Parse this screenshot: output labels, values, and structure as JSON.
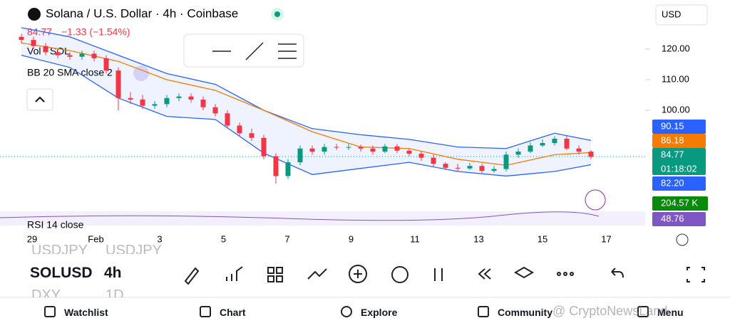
{
  "header": {
    "title": "Solana / U.S. Dollar · 4h · Coinbase",
    "price": "84.77",
    "change": "−1.33 (−1.54%)",
    "volume_label": "Vol · SOL",
    "indicator": "BB 20 SMA close 2",
    "currency": "USD",
    "rsi_label": "RSI 14 close"
  },
  "chart_data": {
    "type": "candlestick",
    "candles": {
      "open": [
        124,
        123,
        121,
        119,
        118,
        117.5,
        118.5,
        117,
        113,
        104,
        103.5,
        101.5,
        102,
        104,
        104.5,
        103.5,
        101,
        99,
        95,
        92.5,
        91,
        85,
        78.5,
        83,
        87.5,
        86.5,
        88,
        87.8,
        88,
        87.5,
        86.5,
        88.2,
        86.8,
        85.8,
        84.5,
        82.5,
        81.2,
        81,
        81.8,
        80.2,
        80.8,
        85.5,
        86.5,
        88.5,
        89.3,
        90.7,
        87.5,
        86.5
      ],
      "high": [
        125,
        124,
        122,
        120,
        119,
        119.5,
        119.5,
        118,
        114,
        106,
        105,
        103,
        105,
        105.5,
        105.5,
        104.5,
        102,
        100,
        96,
        94,
        92,
        86,
        84,
        88.5,
        88.5,
        89,
        89,
        89,
        88.8,
        88.5,
        89,
        89,
        87.5,
        86.5,
        85.5,
        83,
        82.5,
        82.8,
        82.5,
        81.8,
        86.5,
        87.5,
        89.5,
        90.5,
        91.5,
        91.5,
        88.5,
        87
      ],
      "low": [
        122,
        120,
        118,
        117,
        116.5,
        116.5,
        116,
        112,
        100,
        102,
        100.5,
        100.5,
        101,
        103,
        102.5,
        100,
        98,
        94,
        91.5,
        90,
        84,
        76,
        77.5,
        82,
        85.5,
        85.5,
        87,
        87,
        86.5,
        85.5,
        86,
        86,
        85,
        83.5,
        81.5,
        80.5,
        80,
        80.5,
        79.5,
        79.5,
        80,
        84.5,
        86,
        88,
        88.5,
        87,
        85.5,
        84
      ],
      "close": [
        123,
        121,
        119,
        118,
        117.5,
        118.5,
        117,
        113,
        104,
        103.5,
        101.5,
        102,
        104,
        104.5,
        103.5,
        101,
        99,
        95,
        92.5,
        91,
        85,
        78.5,
        83,
        87.5,
        86.5,
        88,
        87.8,
        88,
        87.5,
        86.5,
        88.2,
        86.8,
        85.8,
        84.5,
        82.5,
        81.2,
        81,
        81.8,
        80.2,
        80.8,
        85.5,
        86.5,
        88.5,
        89.3,
        90.7,
        87.5,
        86.5,
        84.77
      ]
    },
    "up_color": "#089981",
    "down_color": "#f23645",
    "bands": {
      "x": [
        0,
        4,
        8,
        12,
        16,
        20,
        24,
        28,
        32,
        36,
        40,
        44,
        47
      ],
      "upper": [
        127,
        124,
        118,
        112,
        108.5,
        100,
        94,
        92,
        90.5,
        88,
        87.5,
        92.5,
        90.15
      ],
      "middle": [
        122,
        119.5,
        116,
        110,
        106.5,
        100,
        93,
        88,
        87.5,
        84,
        82,
        85.5,
        86.18
      ],
      "lower": [
        118,
        114,
        104,
        98,
        97,
        86,
        79,
        81,
        83,
        80,
        78.5,
        80,
        82.2
      ],
      "band_color": "#2962ff",
      "middle_color": "#f57c00"
    },
    "yticks": [
      {
        "value": 120,
        "label": "120.00"
      },
      {
        "value": 110,
        "label": "110.00"
      },
      {
        "value": 100,
        "label": "100.00"
      }
    ],
    "xlabels": [
      "29",
      "Feb",
      "3",
      "5",
      "7",
      "9",
      "11",
      "13",
      "15",
      "17"
    ],
    "price_labels": [
      {
        "text": "90.15",
        "color": "#2962ff"
      },
      {
        "text": "86.18",
        "color": "#f57c00"
      },
      {
        "text": "84.77",
        "color": "#089981"
      },
      {
        "text": "82.20",
        "color": "#2962ff"
      },
      {
        "text": "204.57 K",
        "color": "#0a8a0a"
      },
      {
        "text": "48.76",
        "color": "#7e57c2"
      }
    ],
    "countdown": "01:18:02"
  },
  "symbols": {
    "prev": "USDJPY",
    "current": "SOLUSD",
    "interval": "4h",
    "next": "DXY",
    "next_interval": "1D"
  },
  "nav": [
    "Watchlist",
    "Chart",
    "Explore",
    "Community",
    "Menu"
  ],
  "watermark": "@ CryptoNewsLand"
}
